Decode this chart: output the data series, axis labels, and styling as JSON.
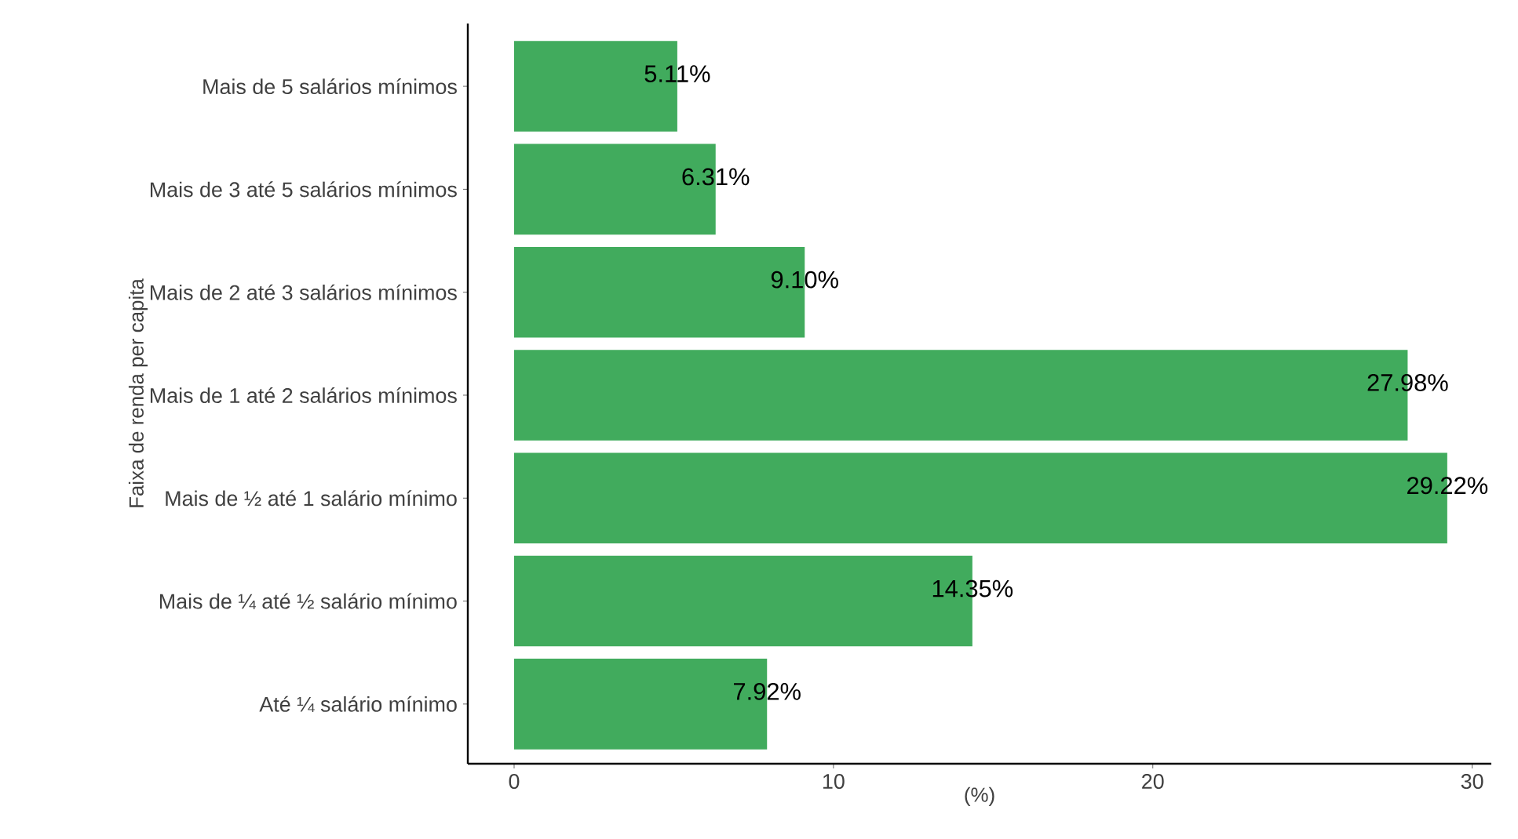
{
  "chart_data": {
    "type": "bar",
    "orientation": "horizontal",
    "categories": [
      "Mais de 5 salários mínimos",
      "Mais de 3 até 5 salários mínimos",
      "Mais de 2 até 3 salários mínimos",
      "Mais de 1 até 2 salários mínimos",
      "Mais de ½ até 1 salário mínimo",
      "Mais de ¼ até ½ salário mínimo",
      "Até ¼ salário mínimo"
    ],
    "values": [
      5.11,
      6.31,
      9.1,
      27.98,
      29.22,
      14.35,
      7.92
    ],
    "value_labels": [
      "5.11%",
      "6.31%",
      "9.10%",
      "27.98%",
      "29.22%",
      "14.35%",
      "7.92%"
    ],
    "color": "#41ab5d",
    "xlim": [
      -1.45,
      30.6
    ],
    "xticks": [
      0,
      10,
      20,
      30
    ],
    "xlabel": "(%)",
    "ylabel": "Faixa de renda per capita",
    "grid": false
  }
}
